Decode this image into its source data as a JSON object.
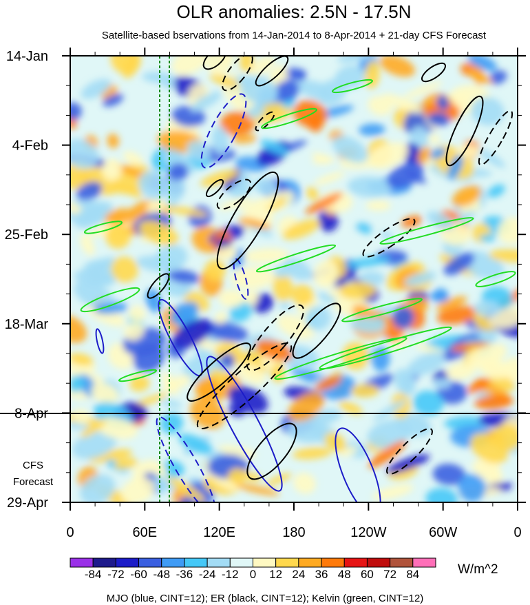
{
  "chart_data": {
    "type": "heatmap",
    "title": "OLR anomalies: 2.5N - 17.5N",
    "subtitle": "Satellite-based bservations from 14-Jan-2014 to 8-Apr-2014 + 21-day CFS Forecast",
    "x_ticks": [
      "0",
      "60E",
      "120E",
      "180",
      "120W",
      "60W",
      "0"
    ],
    "x_range_deg": [
      0,
      360
    ],
    "y_ticks": [
      "14-Jan",
      "4-Feb",
      "25-Feb",
      "18-Mar",
      "8-Apr",
      "29-Apr"
    ],
    "y_range_days": [
      0,
      105
    ],
    "observation_end_label": "8-Apr",
    "forecast_label": [
      "CFS",
      "Forecast"
    ],
    "colorbar": {
      "labels": [
        "-84",
        "-72",
        "-60",
        "-48",
        "-36",
        "-24",
        "-12",
        "0",
        "12",
        "24",
        "36",
        "48",
        "60",
        "72",
        "84"
      ],
      "colors": [
        "#9a30e8",
        "#1e1a8c",
        "#1c1cc8",
        "#3a5fe0",
        "#3f9bf5",
        "#45c8f7",
        "#a3dcf5",
        "#e0f7f7",
        "#fff9c2",
        "#ffd84d",
        "#ffaa22",
        "#ff7a0a",
        "#e61414",
        "#c00d0d",
        "#b0533b",
        "#ff6fb8"
      ],
      "units": "W/m^2"
    },
    "footnote": "MJO (blue, CINT=12); ER (black, CINT=12); Kelvin (green, CINT=12)",
    "overlays": [
      {
        "name": "MJO",
        "color": "#1c1cc8"
      },
      {
        "name": "ER",
        "color": "#000000"
      },
      {
        "name": "Kelvin",
        "color": "#22dd22"
      }
    ],
    "reference_lines_lon": [
      72,
      80
    ],
    "grid": false
  }
}
